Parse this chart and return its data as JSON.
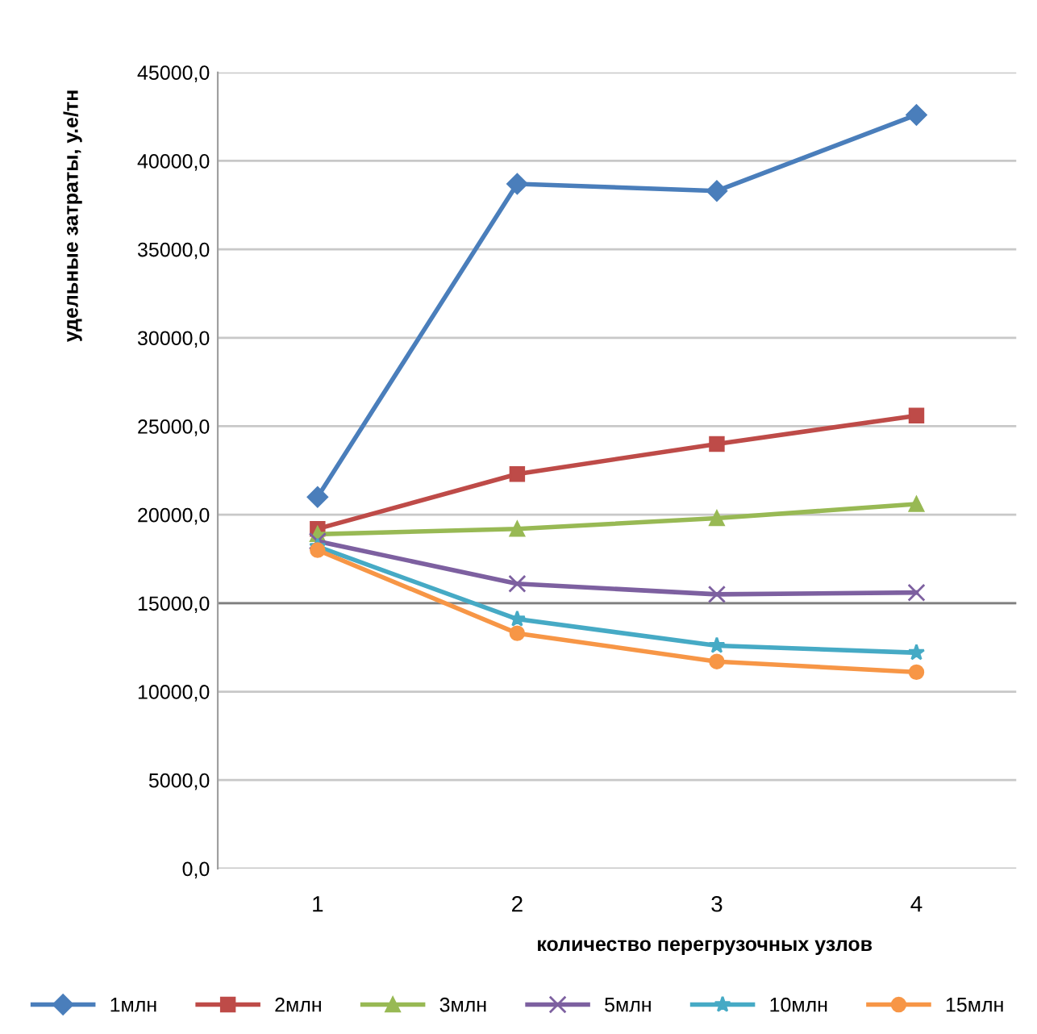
{
  "chart_data": {
    "type": "line",
    "xlabel": "количество перегрузочных узлов",
    "ylabel": "удельные затраты, у.е/тн",
    "categories": [
      "1",
      "2",
      "3",
      "4"
    ],
    "series": [
      {
        "name": "1млн",
        "color": "#4a7ebb",
        "marker": "diamond",
        "values": [
          21000,
          38700,
          38300,
          42600
        ]
      },
      {
        "name": "2млн",
        "color": "#be4b48",
        "marker": "square",
        "values": [
          19200,
          22300,
          24000,
          25600
        ]
      },
      {
        "name": "3млн",
        "color": "#98b954",
        "marker": "triangle",
        "values": [
          18900,
          19200,
          19800,
          20600
        ]
      },
      {
        "name": "5млн",
        "color": "#7d60a0",
        "marker": "cross",
        "values": [
          18500,
          16100,
          15500,
          15600
        ]
      },
      {
        "name": "10млн",
        "color": "#46aac5",
        "marker": "star",
        "values": [
          18200,
          14100,
          12600,
          12200
        ]
      },
      {
        "name": "15млн",
        "color": "#f79646",
        "marker": "circle",
        "values": [
          18000,
          13300,
          11700,
          11100
        ]
      }
    ],
    "ylim": [
      0,
      45000
    ],
    "yticks": [
      {
        "value": 0,
        "label": "0,0"
      },
      {
        "value": 5000,
        "label": "5000,0"
      },
      {
        "value": 10000,
        "label": "10000,0"
      },
      {
        "value": 15000,
        "label": "15000,0"
      },
      {
        "value": 20000,
        "label": "20000,0"
      },
      {
        "value": 25000,
        "label": "25000,0"
      },
      {
        "value": 30000,
        "label": "30000,0"
      },
      {
        "value": 35000,
        "label": "35000,0"
      },
      {
        "value": 40000,
        "label": "40000,0"
      },
      {
        "value": 45000,
        "label": "45000,0"
      }
    ],
    "ref_lines": [
      {
        "axis": "y",
        "value": 15000,
        "color": "#808080"
      }
    ],
    "grid": "y",
    "legend": "bottom",
    "line_style": "solid"
  }
}
